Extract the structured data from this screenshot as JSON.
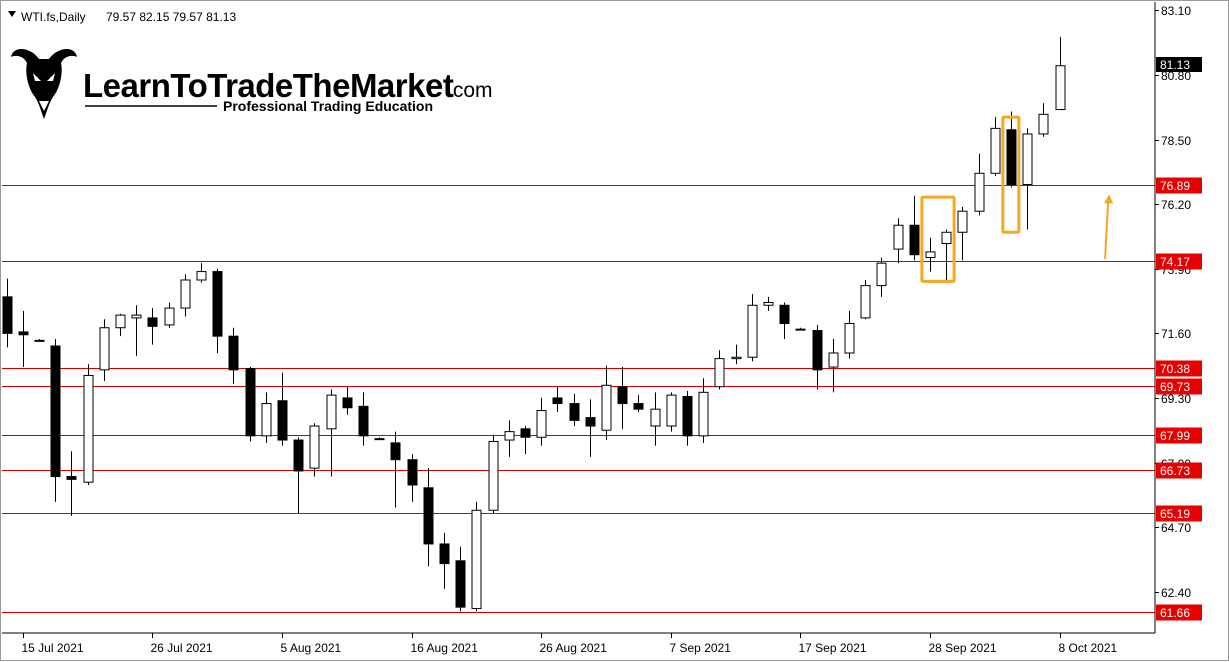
{
  "header": {
    "symbol": "WTI.fs,Daily",
    "ohlc": "79.57 82.15 79.57 81.13",
    "menu_icon": "triangle-down-icon"
  },
  "logo": {
    "name": "LearnToTradeTheMarket",
    "domain": ".com",
    "tagline": "Professional Trading Education",
    "icon": "bull-head-icon"
  },
  "colors": {
    "level_line": "#d40000",
    "level_label_bg": "#e60000",
    "highlight_box": "#f5a623",
    "arrow": "#f5a623",
    "bear_candle": "#000000",
    "bull_candle": "#ffffff"
  },
  "chart_data": {
    "type": "candlestick",
    "symbol": "WTI.fs",
    "timeframe": "Daily",
    "current_price": "81.13",
    "ylim": [
      61.0,
      83.4
    ],
    "price_ticks": [
      "83.10",
      "80.80",
      "78.50",
      "76.20",
      "73.90",
      "71.60",
      "69.30",
      "67.00",
      "64.70",
      "62.40"
    ],
    "date_labels": [
      {
        "label": "15 Jul 2021",
        "index": 1
      },
      {
        "label": "26 Jul 2021",
        "index": 9
      },
      {
        "label": "5 Aug 2021",
        "index": 17
      },
      {
        "label": "16 Aug 2021",
        "index": 25
      },
      {
        "label": "26 Aug 2021",
        "index": 33
      },
      {
        "label": "7 Sep 2021",
        "index": 41
      },
      {
        "label": "17 Sep 2021",
        "index": 49
      },
      {
        "label": "28 Sep 2021",
        "index": 57
      },
      {
        "label": "8 Oct 2021",
        "index": 65
      }
    ],
    "levels": [
      "76.89",
      "74.17",
      "70.38",
      "69.73",
      "67.99",
      "66.73",
      "65.19",
      "61.66"
    ],
    "highlight_boxes": [
      {
        "from_index": 57,
        "to_index": 58,
        "low": 73.45,
        "high": 76.45
      },
      {
        "from_index": 62,
        "to_index": 62,
        "low": 75.2,
        "high": 79.3
      }
    ],
    "arrow": {
      "index": 68,
      "from": 74.25,
      "to": 76.55
    },
    "candles": [
      {
        "o": 72.9,
        "h": 73.55,
        "l": 71.1,
        "c": 71.6
      },
      {
        "o": 71.65,
        "h": 72.4,
        "l": 70.4,
        "c": 71.55
      },
      {
        "o": 71.35,
        "h": 71.4,
        "l": 71.3,
        "c": 71.35
      },
      {
        "o": 71.15,
        "h": 71.4,
        "l": 65.6,
        "c": 66.5
      },
      {
        "o": 66.5,
        "h": 67.4,
        "l": 65.1,
        "c": 66.4
      },
      {
        "o": 66.3,
        "h": 70.5,
        "l": 66.2,
        "c": 70.1
      },
      {
        "o": 70.3,
        "h": 72.1,
        "l": 69.9,
        "c": 71.8
      },
      {
        "o": 71.8,
        "h": 72.3,
        "l": 71.5,
        "c": 72.25
      },
      {
        "o": 72.15,
        "h": 72.6,
        "l": 70.8,
        "c": 72.25
      },
      {
        "o": 72.15,
        "h": 72.5,
        "l": 71.2,
        "c": 71.85
      },
      {
        "o": 71.9,
        "h": 72.7,
        "l": 71.8,
        "c": 72.5
      },
      {
        "o": 72.5,
        "h": 73.7,
        "l": 72.2,
        "c": 73.5
      },
      {
        "o": 73.5,
        "h": 74.1,
        "l": 73.4,
        "c": 73.8
      },
      {
        "o": 73.8,
        "h": 73.9,
        "l": 70.9,
        "c": 71.5
      },
      {
        "o": 71.5,
        "h": 71.8,
        "l": 69.8,
        "c": 70.3
      },
      {
        "o": 70.35,
        "h": 70.4,
        "l": 67.75,
        "c": 67.95
      },
      {
        "o": 67.95,
        "h": 69.5,
        "l": 67.7,
        "c": 69.1
      },
      {
        "o": 69.2,
        "h": 70.2,
        "l": 67.6,
        "c": 67.8
      },
      {
        "o": 67.8,
        "h": 67.9,
        "l": 65.2,
        "c": 66.7
      },
      {
        "o": 66.8,
        "h": 68.4,
        "l": 66.5,
        "c": 68.3
      },
      {
        "o": 68.2,
        "h": 69.6,
        "l": 66.5,
        "c": 69.4
      },
      {
        "o": 69.3,
        "h": 69.7,
        "l": 68.7,
        "c": 68.95
      },
      {
        "o": 69.0,
        "h": 69.5,
        "l": 67.6,
        "c": 67.95
      },
      {
        "o": 67.85,
        "h": 67.9,
        "l": 67.8,
        "c": 67.85
      },
      {
        "o": 67.7,
        "h": 68.1,
        "l": 65.4,
        "c": 67.1
      },
      {
        "o": 67.1,
        "h": 67.3,
        "l": 65.6,
        "c": 66.2
      },
      {
        "o": 66.1,
        "h": 66.8,
        "l": 63.3,
        "c": 64.1
      },
      {
        "o": 64.1,
        "h": 64.5,
        "l": 62.5,
        "c": 63.4
      },
      {
        "o": 63.5,
        "h": 64.0,
        "l": 61.7,
        "c": 61.85
      },
      {
        "o": 61.8,
        "h": 65.6,
        "l": 61.7,
        "c": 65.3
      },
      {
        "o": 65.3,
        "h": 68.0,
        "l": 65.2,
        "c": 67.75
      },
      {
        "o": 67.8,
        "h": 68.5,
        "l": 67.2,
        "c": 68.1
      },
      {
        "o": 68.2,
        "h": 68.3,
        "l": 67.3,
        "c": 67.9
      },
      {
        "o": 67.9,
        "h": 69.3,
        "l": 67.6,
        "c": 68.85
      },
      {
        "o": 69.3,
        "h": 69.7,
        "l": 68.8,
        "c": 69.1
      },
      {
        "o": 69.1,
        "h": 69.45,
        "l": 68.3,
        "c": 68.5
      },
      {
        "o": 68.6,
        "h": 69.25,
        "l": 67.2,
        "c": 68.3
      },
      {
        "o": 68.15,
        "h": 70.45,
        "l": 67.8,
        "c": 69.75
      },
      {
        "o": 69.7,
        "h": 70.4,
        "l": 68.2,
        "c": 69.1
      },
      {
        "o": 69.1,
        "h": 69.4,
        "l": 68.8,
        "c": 68.9
      },
      {
        "o": 68.3,
        "h": 69.5,
        "l": 67.6,
        "c": 68.9
      },
      {
        "o": 68.3,
        "h": 69.5,
        "l": 68.1,
        "c": 69.4
      },
      {
        "o": 69.35,
        "h": 69.55,
        "l": 67.6,
        "c": 67.95
      },
      {
        "o": 67.95,
        "h": 70.0,
        "l": 67.7,
        "c": 69.5
      },
      {
        "o": 69.7,
        "h": 71.0,
        "l": 69.6,
        "c": 70.7
      },
      {
        "o": 70.7,
        "h": 71.2,
        "l": 70.5,
        "c": 70.75
      },
      {
        "o": 70.75,
        "h": 73.0,
        "l": 70.6,
        "c": 72.6
      },
      {
        "o": 72.6,
        "h": 72.9,
        "l": 72.4,
        "c": 72.7
      },
      {
        "o": 72.6,
        "h": 72.7,
        "l": 71.4,
        "c": 71.95
      },
      {
        "o": 71.75,
        "h": 71.8,
        "l": 71.7,
        "c": 71.75
      },
      {
        "o": 71.7,
        "h": 71.9,
        "l": 69.6,
        "c": 70.3
      },
      {
        "o": 70.4,
        "h": 71.4,
        "l": 69.5,
        "c": 70.9
      },
      {
        "o": 70.9,
        "h": 72.4,
        "l": 70.7,
        "c": 71.95
      },
      {
        "o": 72.15,
        "h": 73.5,
        "l": 72.1,
        "c": 73.3
      },
      {
        "o": 73.3,
        "h": 74.3,
        "l": 72.9,
        "c": 74.1
      },
      {
        "o": 74.6,
        "h": 75.7,
        "l": 74.1,
        "c": 75.45
      },
      {
        "o": 75.45,
        "h": 76.5,
        "l": 74.2,
        "c": 74.4
      },
      {
        "o": 74.3,
        "h": 75.0,
        "l": 73.8,
        "c": 74.5
      },
      {
        "o": 74.8,
        "h": 75.3,
        "l": 73.5,
        "c": 75.2
      },
      {
        "o": 75.2,
        "h": 76.1,
        "l": 74.2,
        "c": 75.95
      },
      {
        "o": 75.95,
        "h": 78.0,
        "l": 75.8,
        "c": 77.3
      },
      {
        "o": 77.3,
        "h": 79.3,
        "l": 77.2,
        "c": 78.9
      },
      {
        "o": 78.85,
        "h": 79.5,
        "l": 76.8,
        "c": 76.9
      },
      {
        "o": 76.9,
        "h": 78.9,
        "l": 75.3,
        "c": 78.7
      },
      {
        "o": 78.7,
        "h": 79.8,
        "l": 78.6,
        "c": 79.4
      },
      {
        "o": 79.57,
        "h": 82.15,
        "l": 79.57,
        "c": 81.13
      }
    ]
  }
}
